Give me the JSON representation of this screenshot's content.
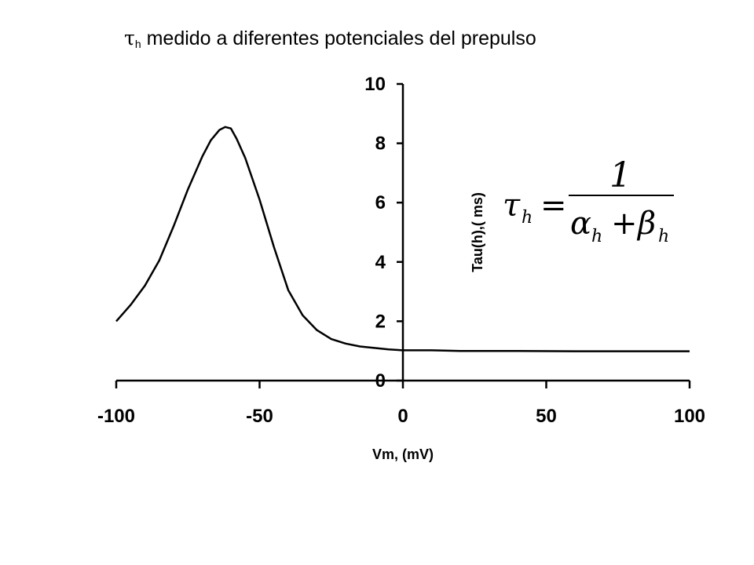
{
  "title": {
    "symbol": "τ",
    "subscript": "h",
    "text": " medido a diferentes potenciales del prepulso"
  },
  "formula": {
    "lhs": "τ",
    "lhs_sub": "h",
    "equals": "=",
    "numerator": "1",
    "den_a": "α",
    "den_a_sub": "h",
    "plus": "+",
    "den_b": "β",
    "den_b_sub": "h"
  },
  "chart_data": {
    "type": "line",
    "xlabel": "Vm, (mV)",
    "ylabel": "Tau(h),( ms)",
    "xlim": [
      -100,
      100
    ],
    "ylim": [
      0,
      10
    ],
    "x_ticks": [
      -100,
      -50,
      0,
      50,
      100
    ],
    "y_ticks": [
      0,
      2,
      4,
      6,
      8,
      10
    ],
    "grid": false,
    "series": [
      {
        "x": [
          -100,
          -95,
          -90,
          -85,
          -80,
          -75,
          -70,
          -67,
          -64,
          -62,
          -60,
          -58,
          -55,
          -50,
          -45,
          -40,
          -35,
          -30,
          -25,
          -20,
          -15,
          -10,
          -5,
          0,
          10,
          20,
          40,
          60,
          80,
          100
        ],
        "y": [
          2.0,
          2.55,
          3.2,
          4.05,
          5.2,
          6.45,
          7.55,
          8.1,
          8.45,
          8.55,
          8.5,
          8.15,
          7.5,
          6.1,
          4.5,
          3.05,
          2.2,
          1.7,
          1.4,
          1.25,
          1.15,
          1.1,
          1.05,
          1.02,
          1.02,
          1.0,
          1.0,
          0.99,
          0.99,
          0.99
        ]
      }
    ]
  }
}
